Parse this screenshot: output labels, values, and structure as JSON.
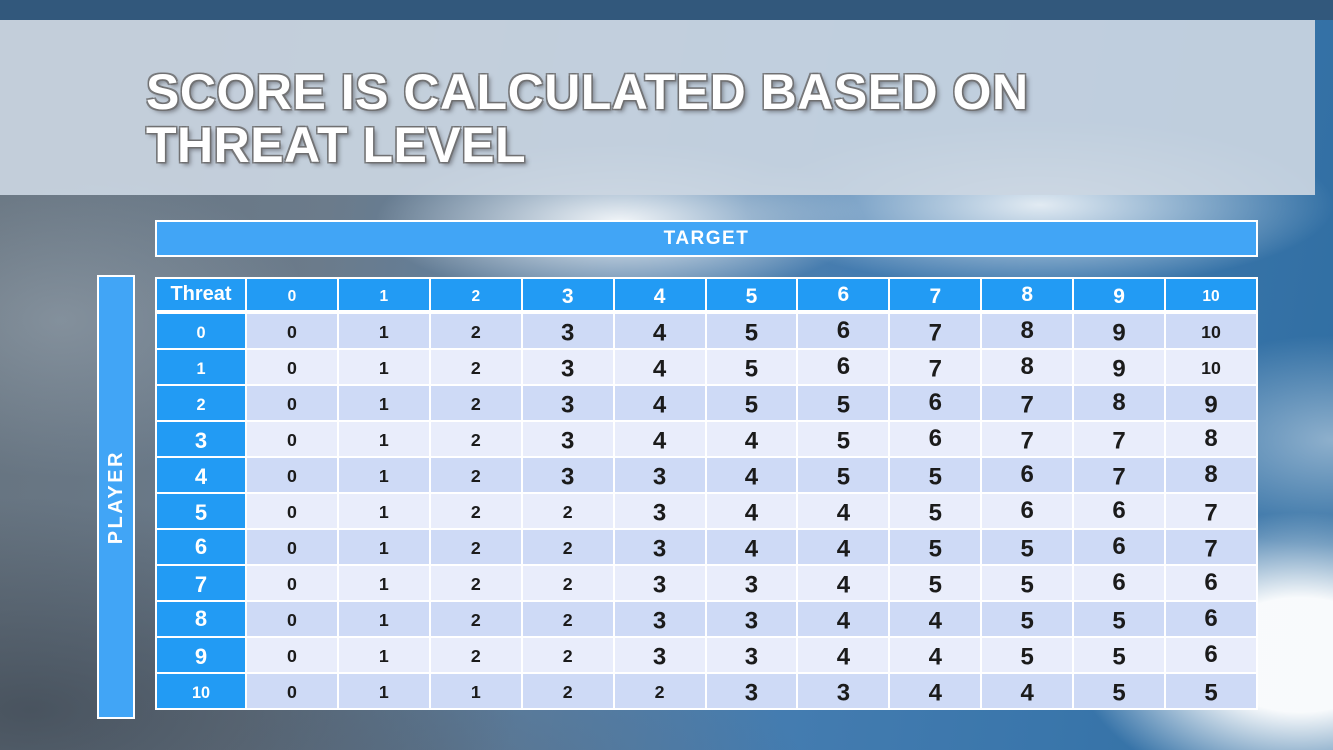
{
  "slide": {
    "title_line1": "SCORE IS CALCULATED BASED ON",
    "title_line2": "THREAT LEVEL"
  },
  "axes": {
    "target_label": "TARGET",
    "player_label": "PLAYER"
  },
  "table": {
    "corner_label": "Threat",
    "col_headers": [
      "0",
      "1",
      "2",
      "3",
      "4",
      "5",
      "6",
      "7",
      "8",
      "9",
      "10"
    ],
    "rows": [
      {
        "header": "0",
        "values": [
          "0",
          "1",
          "2",
          "3",
          "4",
          "5",
          "6",
          "7",
          "8",
          "9",
          "10"
        ]
      },
      {
        "header": "1",
        "values": [
          "0",
          "1",
          "2",
          "3",
          "4",
          "5",
          "6",
          "7",
          "8",
          "9",
          "10"
        ]
      },
      {
        "header": "2",
        "values": [
          "0",
          "1",
          "2",
          "3",
          "4",
          "5",
          "5",
          "6",
          "7",
          "8",
          "9"
        ]
      },
      {
        "header": "3",
        "values": [
          "0",
          "1",
          "2",
          "3",
          "4",
          "4",
          "5",
          "6",
          "7",
          "7",
          "8"
        ]
      },
      {
        "header": "4",
        "values": [
          "0",
          "1",
          "2",
          "3",
          "3",
          "4",
          "5",
          "5",
          "6",
          "7",
          "8"
        ]
      },
      {
        "header": "5",
        "values": [
          "0",
          "1",
          "2",
          "2",
          "3",
          "4",
          "4",
          "5",
          "6",
          "6",
          "7"
        ]
      },
      {
        "header": "6",
        "values": [
          "0",
          "1",
          "2",
          "2",
          "3",
          "4",
          "4",
          "5",
          "5",
          "6",
          "7"
        ]
      },
      {
        "header": "7",
        "values": [
          "0",
          "1",
          "2",
          "2",
          "3",
          "3",
          "4",
          "5",
          "5",
          "6",
          "6"
        ]
      },
      {
        "header": "8",
        "values": [
          "0",
          "1",
          "2",
          "2",
          "3",
          "3",
          "4",
          "4",
          "5",
          "5",
          "6"
        ]
      },
      {
        "header": "9",
        "values": [
          "0",
          "1",
          "2",
          "2",
          "3",
          "3",
          "4",
          "4",
          "5",
          "5",
          "6"
        ]
      },
      {
        "header": "10",
        "values": [
          "0",
          "1",
          "1",
          "2",
          "2",
          "3",
          "3",
          "4",
          "4",
          "5",
          "5"
        ]
      }
    ]
  },
  "chart_data": {
    "type": "table",
    "x_axis_label": "TARGET",
    "y_axis_label": "PLAYER",
    "row_header_label": "Threat",
    "x_categories": [
      0,
      1,
      2,
      3,
      4,
      5,
      6,
      7,
      8,
      9,
      10
    ],
    "y_categories": [
      0,
      1,
      2,
      3,
      4,
      5,
      6,
      7,
      8,
      9,
      10
    ],
    "matrix": [
      [
        0,
        1,
        2,
        3,
        4,
        5,
        6,
        7,
        8,
        9,
        10
      ],
      [
        0,
        1,
        2,
        3,
        4,
        5,
        6,
        7,
        8,
        9,
        10
      ],
      [
        0,
        1,
        2,
        3,
        4,
        5,
        5,
        6,
        7,
        8,
        9
      ],
      [
        0,
        1,
        2,
        3,
        4,
        4,
        5,
        6,
        7,
        7,
        8
      ],
      [
        0,
        1,
        2,
        3,
        3,
        4,
        5,
        5,
        6,
        7,
        8
      ],
      [
        0,
        1,
        2,
        2,
        3,
        4,
        4,
        5,
        6,
        6,
        7
      ],
      [
        0,
        1,
        2,
        2,
        3,
        4,
        4,
        5,
        5,
        6,
        7
      ],
      [
        0,
        1,
        2,
        2,
        3,
        3,
        4,
        5,
        5,
        6,
        6
      ],
      [
        0,
        1,
        2,
        2,
        3,
        3,
        4,
        4,
        5,
        5,
        6
      ],
      [
        0,
        1,
        2,
        2,
        3,
        3,
        4,
        4,
        5,
        5,
        6
      ],
      [
        0,
        1,
        1,
        2,
        2,
        3,
        3,
        4,
        4,
        5,
        5
      ]
    ]
  },
  "colors": {
    "accent_blue": "#229BF4",
    "bar_blue": "#41A5F6",
    "stripe_dark": "#CEDAF6",
    "stripe_light": "#E9EDFB",
    "top_bar_color": "#32587C",
    "cell_text_color": "#1B1B1B"
  }
}
